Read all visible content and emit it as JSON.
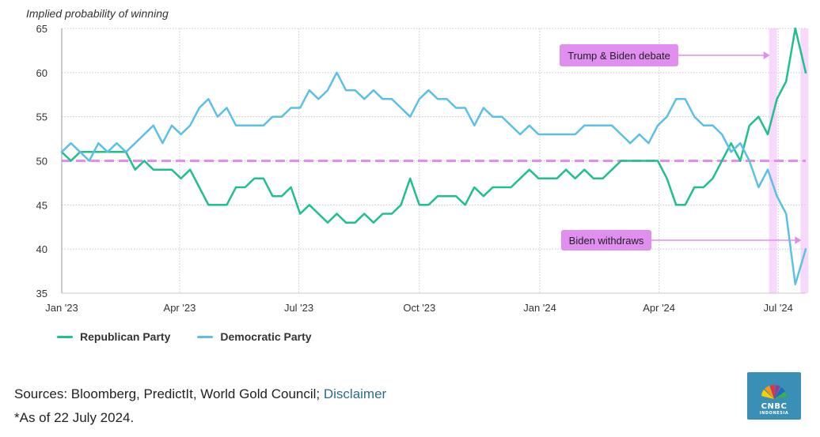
{
  "chart_data": {
    "type": "line",
    "ylabel": "Implied probability of winning",
    "ylim": [
      35,
      65
    ],
    "yticks": [
      35,
      40,
      45,
      50,
      55,
      60,
      65
    ],
    "x_start": "2023-01-01",
    "x_end": "2024-07-22",
    "xticks": [
      {
        "date": "2023-01-01",
        "label": "Jan '23"
      },
      {
        "date": "2023-04-01",
        "label": "Apr '23"
      },
      {
        "date": "2023-07-01",
        "label": "Jul '23"
      },
      {
        "date": "2023-10-01",
        "label": "Oct '23"
      },
      {
        "date": "2024-01-01",
        "label": "Jan '24"
      },
      {
        "date": "2024-04-01",
        "label": "Apr '24"
      },
      {
        "date": "2024-07-01",
        "label": "Jul '24"
      }
    ],
    "grid": true,
    "reference_line": 50,
    "series": [
      {
        "name": "Republican Party",
        "color": "#1fbf8f",
        "x": [
          "2023-01-01",
          "2023-01-08",
          "2023-01-15",
          "2023-01-22",
          "2023-01-29",
          "2023-02-05",
          "2023-02-12",
          "2023-02-19",
          "2023-02-26",
          "2023-03-05",
          "2023-03-12",
          "2023-03-19",
          "2023-03-26",
          "2023-04-02",
          "2023-04-09",
          "2023-04-16",
          "2023-04-23",
          "2023-04-30",
          "2023-05-07",
          "2023-05-14",
          "2023-05-21",
          "2023-05-28",
          "2023-06-04",
          "2023-06-11",
          "2023-06-18",
          "2023-06-25",
          "2023-07-02",
          "2023-07-09",
          "2023-07-16",
          "2023-07-23",
          "2023-07-30",
          "2023-08-06",
          "2023-08-13",
          "2023-08-20",
          "2023-08-27",
          "2023-09-03",
          "2023-09-10",
          "2023-09-17",
          "2023-09-24",
          "2023-10-01",
          "2023-10-08",
          "2023-10-15",
          "2023-10-22",
          "2023-10-29",
          "2023-11-05",
          "2023-11-12",
          "2023-11-19",
          "2023-11-26",
          "2023-12-03",
          "2023-12-10",
          "2023-12-17",
          "2023-12-24",
          "2023-12-31",
          "2024-01-07",
          "2024-01-14",
          "2024-01-21",
          "2024-01-28",
          "2024-02-04",
          "2024-02-11",
          "2024-02-18",
          "2024-02-25",
          "2024-03-03",
          "2024-03-10",
          "2024-03-17",
          "2024-03-24",
          "2024-03-31",
          "2024-04-07",
          "2024-04-14",
          "2024-04-21",
          "2024-04-28",
          "2024-05-05",
          "2024-05-12",
          "2024-05-19",
          "2024-05-26",
          "2024-06-02",
          "2024-06-09",
          "2024-06-16",
          "2024-06-23",
          "2024-06-30",
          "2024-07-07",
          "2024-07-14",
          "2024-07-22"
        ],
        "values": [
          51,
          50,
          51,
          51,
          51,
          51,
          51,
          51,
          49,
          50,
          49,
          49,
          49,
          48,
          49,
          47,
          45,
          45,
          45,
          47,
          47,
          48,
          48,
          46,
          46,
          47,
          44,
          45,
          44,
          43,
          44,
          43,
          43,
          44,
          43,
          44,
          44,
          45,
          48,
          45,
          45,
          46,
          46,
          46,
          45,
          47,
          46,
          47,
          47,
          47,
          48,
          49,
          48,
          48,
          48,
          49,
          48,
          49,
          48,
          48,
          49,
          50,
          50,
          50,
          50,
          50,
          48,
          45,
          45,
          47,
          47,
          48,
          50,
          52,
          50,
          54,
          55,
          53,
          57,
          59,
          65,
          60
        ]
      },
      {
        "name": "Democratic Party",
        "color": "#5bc0e6",
        "x": [
          "2023-01-01",
          "2023-01-08",
          "2023-01-15",
          "2023-01-22",
          "2023-01-29",
          "2023-02-05",
          "2023-02-12",
          "2023-02-19",
          "2023-02-26",
          "2023-03-05",
          "2023-03-12",
          "2023-03-19",
          "2023-03-26",
          "2023-04-02",
          "2023-04-09",
          "2023-04-16",
          "2023-04-23",
          "2023-04-30",
          "2023-05-07",
          "2023-05-14",
          "2023-05-21",
          "2023-05-28",
          "2023-06-04",
          "2023-06-11",
          "2023-06-18",
          "2023-06-25",
          "2023-07-02",
          "2023-07-09",
          "2023-07-16",
          "2023-07-23",
          "2023-07-30",
          "2023-08-06",
          "2023-08-13",
          "2023-08-20",
          "2023-08-27",
          "2023-09-03",
          "2023-09-10",
          "2023-09-17",
          "2023-09-24",
          "2023-10-01",
          "2023-10-08",
          "2023-10-15",
          "2023-10-22",
          "2023-10-29",
          "2023-11-05",
          "2023-11-12",
          "2023-11-19",
          "2023-11-26",
          "2023-12-03",
          "2023-12-10",
          "2023-12-17",
          "2023-12-24",
          "2023-12-31",
          "2024-01-07",
          "2024-01-14",
          "2024-01-21",
          "2024-01-28",
          "2024-02-04",
          "2024-02-11",
          "2024-02-18",
          "2024-02-25",
          "2024-03-03",
          "2024-03-10",
          "2024-03-17",
          "2024-03-24",
          "2024-03-31",
          "2024-04-07",
          "2024-04-14",
          "2024-04-21",
          "2024-04-28",
          "2024-05-05",
          "2024-05-12",
          "2024-05-19",
          "2024-05-26",
          "2024-06-02",
          "2024-06-09",
          "2024-06-16",
          "2024-06-23",
          "2024-06-30",
          "2024-07-07",
          "2024-07-14",
          "2024-07-22"
        ],
        "values": [
          51,
          52,
          51,
          50,
          52,
          51,
          52,
          51,
          52,
          53,
          54,
          52,
          54,
          53,
          54,
          56,
          57,
          55,
          56,
          54,
          54,
          54,
          54,
          55,
          55,
          56,
          56,
          58,
          57,
          58,
          60,
          58,
          58,
          57,
          58,
          57,
          57,
          56,
          55,
          57,
          58,
          57,
          57,
          56,
          56,
          54,
          56,
          55,
          55,
          54,
          53,
          54,
          53,
          53,
          53,
          53,
          53,
          54,
          54,
          54,
          54,
          53,
          52,
          53,
          52,
          54,
          55,
          57,
          57,
          55,
          54,
          54,
          53,
          51,
          52,
          50,
          47,
          49,
          46,
          44,
          36,
          40
        ]
      }
    ],
    "annotations": [
      {
        "text": "Trump & Biden debate",
        "date": "2024-06-27",
        "value": 60
      },
      {
        "text": "Biden withdraws",
        "date": "2024-07-21",
        "value": 41
      }
    ],
    "highlight_dates": [
      "2024-06-27",
      "2024-07-21"
    ],
    "annotation_color": "#e08ef0",
    "highlight_color": "#f7d9fb",
    "legend_position": "bottom-left"
  },
  "footer": {
    "sources_prefix": "Sources: Bloomberg, PredictIt, World Gold Council; ",
    "disclaimer_link": "Disclaimer",
    "as_of": "*As of 22 July 2024."
  },
  "logo": {
    "name": "CNBC",
    "sub": "INDONESIA",
    "color": "#3a8fb7"
  }
}
